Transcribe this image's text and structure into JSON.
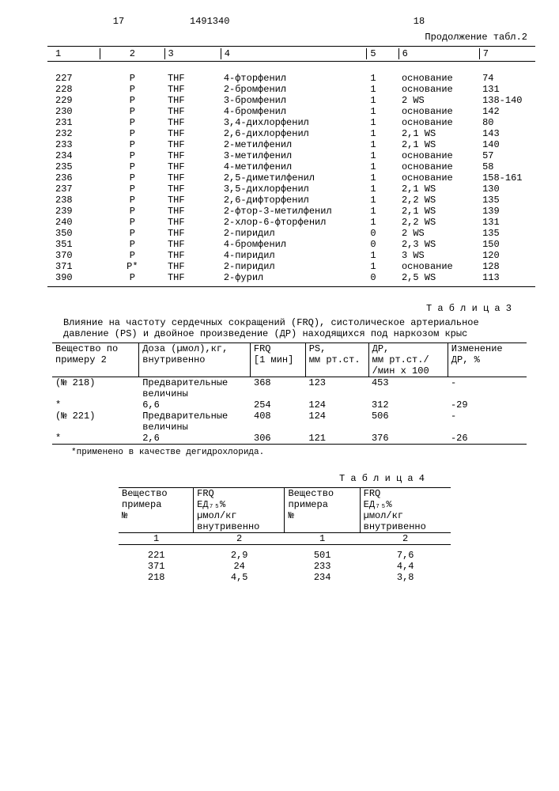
{
  "header": {
    "pg_left": "17",
    "doc_no": "1491340",
    "pg_right": "18"
  },
  "cont_label": "Продолжение табл.2",
  "table2": {
    "headers": [
      "1",
      "2",
      "3",
      "4",
      "5",
      "6",
      "7"
    ],
    "rows": [
      [
        "227",
        "Р",
        "THF",
        "4-фторфенил",
        "1",
        "основание",
        "74"
      ],
      [
        "228",
        "Р",
        "THF",
        "2-бромфенил",
        "1",
        "основание",
        "131"
      ],
      [
        "229",
        "Р",
        "THF",
        "3-бромфенил",
        "1",
        "2 WS",
        "138-140"
      ],
      [
        "230",
        "Р",
        "THF",
        "4-бромфенил",
        "1",
        "основание",
        "142"
      ],
      [
        "231",
        "Р",
        "THF",
        "3,4-дихлорфенил",
        "1",
        "основание",
        "80"
      ],
      [
        "232",
        "Р",
        "THF",
        "2,6-дихлорфенил",
        "1",
        "2,1 WS",
        "143"
      ],
      [
        "233",
        "Р",
        "THF",
        "2-метилфенил",
        "1",
        "2,1 WS",
        "140"
      ],
      [
        "234",
        "Р",
        "THF",
        "3-метилфенил",
        "1",
        "основание",
        "57"
      ],
      [
        "235",
        "Р",
        "THF",
        "4-метилфенил",
        "1",
        "основание",
        "58"
      ],
      [
        "236",
        "Р",
        "THF",
        "2,5-диметилфенил",
        "1",
        "основание",
        "158-161"
      ],
      [
        "237",
        "Р",
        "THF",
        "3,5-дихлорфенил",
        "1",
        "2,1 WS",
        "130"
      ],
      [
        "238",
        "Р",
        "THF",
        "2,6-дифторфенил",
        "1",
        "2,2 WS",
        "135"
      ],
      [
        "239",
        "Р",
        "THF",
        "2-фтор-3-метилфенил",
        "1",
        "2,1 WS",
        "139"
      ],
      [
        "240",
        "Р",
        "THF",
        "2-хлор-6-фторфенил",
        "1",
        "2,2 WS",
        "131"
      ],
      [
        "350",
        "Р",
        "THF",
        "2-пиридил",
        "0",
        "2 WS",
        "135"
      ],
      [
        "351",
        "Р",
        "THF",
        "4-бромфенил",
        "0",
        "2,3 WS",
        "150"
      ],
      [
        "370",
        "Р",
        "THF",
        "4-пиридил",
        "1",
        "3 WS",
        "120"
      ],
      [
        "371",
        "Р*",
        "THF",
        "2-пиридил",
        "1",
        "основание",
        "128"
      ],
      [
        "390",
        "Р",
        "THF",
        "2-фурил",
        "0",
        "2,5 WS",
        "113"
      ]
    ]
  },
  "table3": {
    "title_label": "Т а б л и ц а 3",
    "caption": "Влияние на частоту сердечных сокращений (FRQ), систолическое артериальное давление (PS) и двойное произведение (ДР) находящихся под наркозом крыс",
    "headers": {
      "c1": "Вещество по\nпримеру 2",
      "c2": "Доза (µмол),кг,\nвнутривенно",
      "c3": "FRQ\n[1 мин]",
      "c4": "PS,\nмм рт.ст.",
      "c5": "ДР,\nмм рт.ст./\n/мин х 100",
      "c6": "Изменение\nДР, %"
    },
    "rows": [
      [
        "(№ 218)",
        "Предварительные\nвеличины",
        "368",
        "123",
        "453",
        "-"
      ],
      [
        "*",
        "6,6",
        "254",
        "124",
        "312",
        "-29"
      ],
      [
        "(№ 221)",
        "Предварительные\nвеличины",
        "408",
        "124",
        "506",
        "-"
      ],
      [
        "*",
        "2,6",
        "306",
        "121",
        "376",
        "-26"
      ]
    ],
    "footnote": "*применено в качестве дегидрохлорида."
  },
  "table4": {
    "title_label": "Т а б л и ц а 4",
    "headers": {
      "c1": "Вещество\nпримера\n№",
      "c2": "FRQ\nЕД₇₅%\nµмол/кг\nвнутривенно",
      "c3": "Вещество\nпримера\n№",
      "c4": "FRQ\nЕД₇₅%\nµмол/кг\nвнутривенно"
    },
    "subhead": [
      "1",
      "2",
      "1",
      "2"
    ],
    "rows": [
      [
        "221",
        "2,9",
        "501",
        "7,6"
      ],
      [
        "371",
        "24",
        "233",
        "4,4"
      ],
      [
        "218",
        "4,5",
        "234",
        "3,8"
      ]
    ]
  }
}
